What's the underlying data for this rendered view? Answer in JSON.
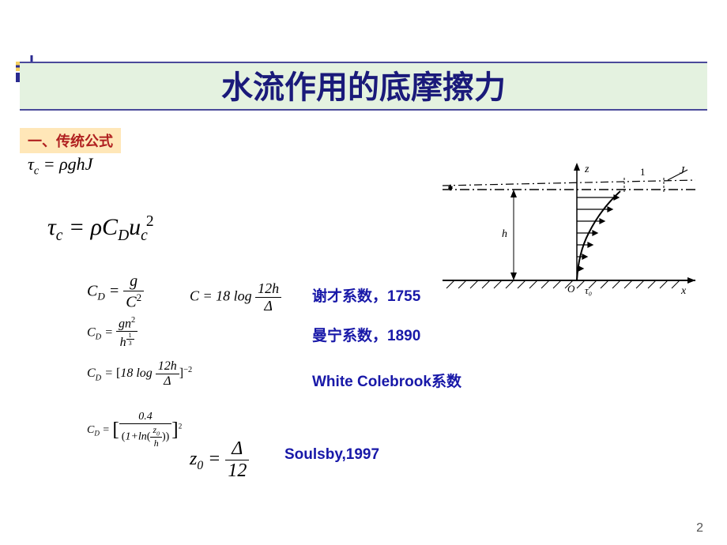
{
  "title": "水流作用的底摩擦力",
  "section_label": "一、传统公式",
  "eq1_html": "<span>τ</span><span class='sub'>c</span> = <span>ρghJ</span>",
  "eq2_html": "<span>τ</span><span class='sub'>c</span> = <span>ρC</span><span class='sub'>D</span><span>u</span><span class='sub'>c</span><span class='sup' style='margin-left:-2px'>2</span>",
  "cd1_html": "C<span class='sub'>D</span> = <span class='frac'><span class='num'>g</span><span class='den'>C<span class='sup'>2</span></span></span>",
  "cd2_html": "C<span class='sub'>D</span> = <span class='frac'><span class='num'>gn<span class='sup'>2</span></span><span class='den'>h<span class='sup' style='font-size:0.55em'><span class='frac' style='font-size:0.9em'><span class='num'>1</span><span class='den'>3</span></span></span></span></span>",
  "cd3_html": "C<span class='sub'>D</span> = <span class='upright'>[</span>18 log <span class='frac'><span class='num'>12h</span><span class='den'>Δ</span></span><span class='upright'>]</span><span class='sup'>−2</span>",
  "cd4_html": "C<span class='sub'>D</span> = <span class='upright' style='font-size:1.8em;vertical-align:middle'>[</span><span class='frac'><span class='num'>0.4</span><span class='den'><span class='upright'>(</span>1+ln<span class='upright'>(</span><span class='frac' style='font-size:0.85em'><span class='num'>z<span class='sub'>0</span></span><span class='den'>h</span></span><span class='upright'>)</span><span class='upright'>)</span></span></span><span class='upright' style='font-size:1.8em;vertical-align:middle'>]</span><span class='sup'>2</span>",
  "aux1_html": "C = 18 log <span class='frac'><span class='num'>12h</span><span class='den'>Δ</span></span>",
  "aux2_html": "z<span class='sub'>0</span> = <span class='frac'><span class='num'>Δ</span><span class='den'>12</span></span>",
  "coef_labels": {
    "chezy": "谢才系数，1755",
    "manning": "曼宁系数，1890",
    "white": "White Colebrook系数",
    "soulsby": "Soulsby,1997"
  },
  "diagram": {
    "z_label": "z",
    "x_label": "x",
    "h_label": "h",
    "one_label": "1",
    "J_label": "J",
    "tau_label": "τ₀",
    "O_label": "O"
  },
  "page_number": "2",
  "colors": {
    "title_bg": "#e4f2e0",
    "title_text": "#1a1a7a",
    "border": "#4a4a9a",
    "section_bg": "#ffe7b8",
    "section_text": "#b02020",
    "coef_text": "#1818a8"
  }
}
